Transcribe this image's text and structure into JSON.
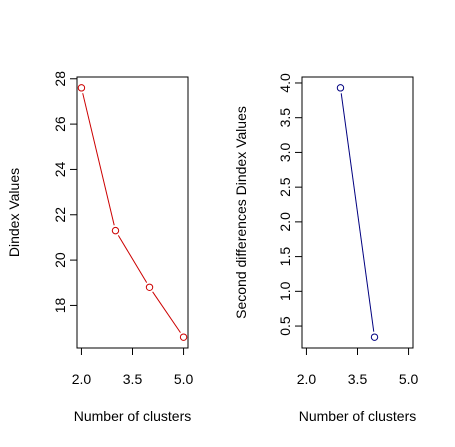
{
  "chart_data": [
    {
      "type": "line",
      "xlabel": "Number of clusters",
      "ylabel": "Dindex Values",
      "x": [
        2,
        3,
        4,
        5
      ],
      "y": [
        27.6,
        21.3,
        18.8,
        16.6
      ],
      "xlim": [
        2,
        5
      ],
      "ylim": [
        16.6,
        27.6
      ],
      "xticks": [
        2.0,
        3.5,
        5.0
      ],
      "xtick_labels": [
        "2.0",
        "3.5",
        "5.0"
      ],
      "yticks": [
        18,
        20,
        22,
        24,
        26,
        28
      ],
      "ytick_labels": [
        "18",
        "20",
        "22",
        "24",
        "26",
        "28"
      ],
      "color": "#cc0000",
      "grid": false,
      "markers": "open-circle"
    },
    {
      "type": "line",
      "xlabel": "Number of clusters",
      "ylabel": "Second differences Dindex Values",
      "x": [
        3,
        4
      ],
      "y": [
        3.93,
        0.34
      ],
      "xlim": [
        2,
        5
      ],
      "ylim": [
        0.34,
        3.93
      ],
      "xticks": [
        2.0,
        3.5,
        5.0
      ],
      "xtick_labels": [
        "2.0",
        "3.5",
        "5.0"
      ],
      "yticks": [
        0.5,
        1.0,
        1.5,
        2.0,
        2.5,
        3.0,
        3.5,
        4.0
      ],
      "ytick_labels": [
        "0.5",
        "1.0",
        "1.5",
        "2.0",
        "2.5",
        "3.0",
        "3.5",
        "4.0"
      ],
      "color": "#000080",
      "grid": false,
      "markers": "open-circle"
    }
  ]
}
